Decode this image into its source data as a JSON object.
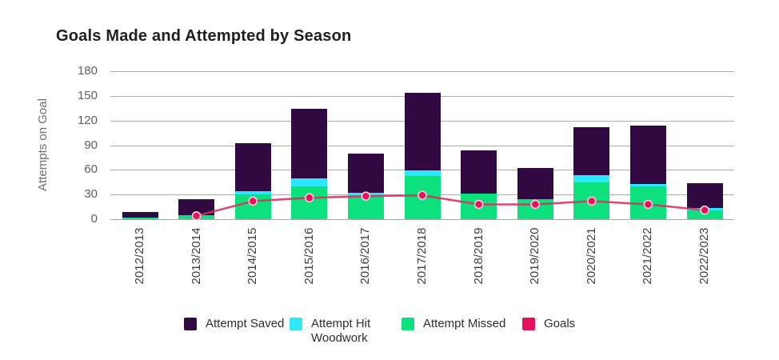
{
  "page": {
    "title": "Goals Made and Attempted by Season"
  },
  "chart_data": {
    "type": "bar",
    "subtype": "stacked-bar-with-line-overlay",
    "title": "Goals Made and Attempted by Season",
    "xlabel": "",
    "ylabel": "Attempts on Goal",
    "ylim": [
      0,
      180
    ],
    "yticks": [
      0,
      30,
      60,
      90,
      120,
      150,
      180
    ],
    "grid": "horizontal",
    "legend_position": "bottom",
    "categories": [
      "2012/2013",
      "2013/2014",
      "2014/2015",
      "2015/2016",
      "2016/2017",
      "2017/2018",
      "2018/2019",
      "2019/2020",
      "2020/2021",
      "2021/2022",
      "2022/2023"
    ],
    "stack_bottom_to_top": [
      "Attempt Missed",
      "Attempt Hit Woodwork",
      "Attempt Saved"
    ],
    "series": [
      {
        "name": "Attempt Saved",
        "type": "bar",
        "color": "#300a40",
        "values": [
          7,
          19,
          58,
          84,
          48,
          95,
          53,
          38,
          58,
          71,
          30
        ]
      },
      {
        "name": "Attempt Hit Woodwork",
        "type": "bar",
        "color": "#2fe7fc",
        "values": [
          0,
          0,
          4,
          10,
          4,
          6,
          0,
          0,
          9,
          3,
          3
        ]
      },
      {
        "name": "Attempt Missed",
        "type": "bar",
        "color": "#0de17d",
        "values": [
          2,
          5,
          30,
          40,
          28,
          53,
          31,
          24,
          45,
          40,
          11
        ]
      },
      {
        "name": "Goals",
        "type": "line",
        "color": "#e4125c",
        "values": [
          null,
          4,
          22,
          26,
          28,
          29,
          18,
          18,
          22,
          18,
          11
        ]
      }
    ],
    "stack_totals": [
      9,
      24,
      92,
      134,
      80,
      154,
      84,
      62,
      112,
      114,
      44
    ],
    "legend": [
      {
        "label": "Attempt Saved",
        "color": "#300a40",
        "marker": "square"
      },
      {
        "label": "Attempt Hit Woodwork",
        "color": "#2fe7fc",
        "marker": "square"
      },
      {
        "label": "Attempt Missed",
        "color": "#0de17d",
        "marker": "square"
      },
      {
        "label": "Goals",
        "color": "#e4125c",
        "marker": "square"
      }
    ]
  },
  "colors": {
    "background": "#ffffff",
    "gridline": "#ababab",
    "title_text": "#1f1f1f",
    "axis_text": "#5f5f5f",
    "category_text": "#3d3d3d",
    "goals_line": "#d7315f",
    "goals_point_ring": "#f4c9d6"
  }
}
